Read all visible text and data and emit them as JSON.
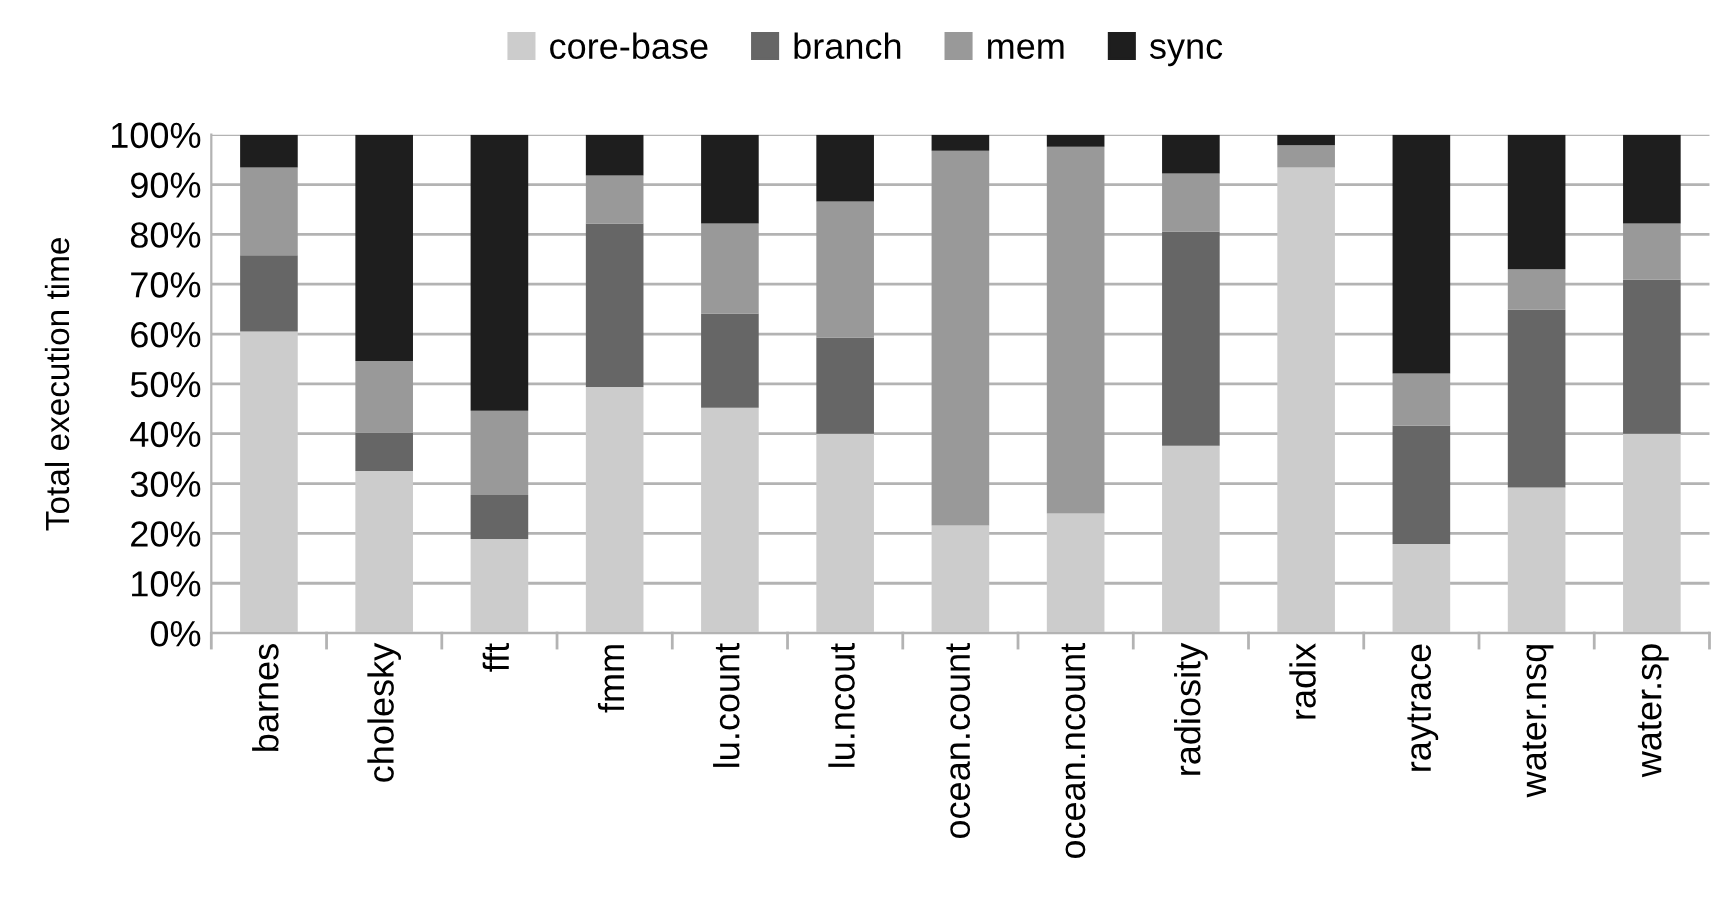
{
  "chart_data": {
    "type": "bar",
    "stacked": true,
    "ylabel": "Total execution time",
    "categories": [
      "barnes",
      "cholesky",
      "fft",
      "fmm",
      "lu.count",
      "lu.ncout",
      "ocean.count",
      "ocean.ncount",
      "radiosity",
      "radix",
      "raytrace",
      "water.nsq",
      "water.sp"
    ],
    "series": [
      {
        "name": "core-base",
        "color": "#cccccc",
        "values": [
          60.5,
          32.5,
          18.9,
          49.4,
          45.2,
          40.0,
          21.6,
          24.0,
          37.6,
          93.4,
          17.9,
          29.2,
          40.0
        ]
      },
      {
        "name": "branch",
        "color": "#666666",
        "values": [
          15.3,
          7.7,
          8.8,
          32.8,
          18.9,
          19.3,
          0,
          0,
          43.0,
          0,
          23.7,
          35.7,
          30.9
        ]
      },
      {
        "name": "mem",
        "color": "#999999",
        "values": [
          17.6,
          14.4,
          16.9,
          9.6,
          18.1,
          27.3,
          75.2,
          73.6,
          11.6,
          4.5,
          10.5,
          8.1,
          11.3
        ]
      },
      {
        "name": "sync",
        "color": "#1e1e1e",
        "values": [
          6.6,
          45.4,
          55.4,
          8.2,
          17.8,
          13.4,
          3.2,
          2.4,
          7.8,
          2.1,
          47.9,
          27.0,
          17.8
        ]
      }
    ],
    "ylim": [
      0,
      100
    ],
    "yticks": [
      {
        "value": 0,
        "label": "0%"
      },
      {
        "value": 10,
        "label": "10%"
      },
      {
        "value": 20,
        "label": "20%"
      },
      {
        "value": 30,
        "label": "30%"
      },
      {
        "value": 40,
        "label": "40%"
      },
      {
        "value": 50,
        "label": "50%"
      },
      {
        "value": 60,
        "label": "60%"
      },
      {
        "value": 70,
        "label": "70%"
      },
      {
        "value": 80,
        "label": "80%"
      },
      {
        "value": 90,
        "label": "90%"
      },
      {
        "value": 100,
        "label": "100%"
      }
    ],
    "grid": "y",
    "legend": "top"
  }
}
